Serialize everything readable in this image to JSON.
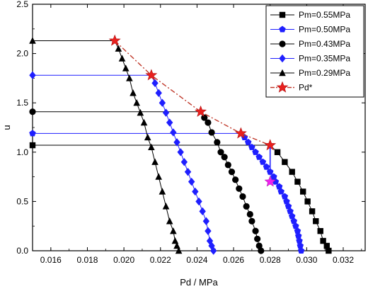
{
  "chart_data": {
    "type": "line",
    "title": "",
    "xlabel": "Pd / MPa",
    "ylabel": "u",
    "xlim": [
      0.015,
      0.0332
    ],
    "ylim": [
      0.0,
      2.5
    ],
    "xticks": [
      "0.016",
      "0.018",
      "0.020",
      "0.022",
      "0.024",
      "0.026",
      "0.028",
      "0.030",
      "0.032"
    ],
    "yticks": [
      "0.0",
      "0.5",
      "1.0",
      "1.5",
      "2.0",
      "2.5"
    ],
    "grid": false,
    "legend_position": "top-right",
    "series": [
      {
        "name": "Pm=0.55MPa",
        "marker": "square",
        "color": "#000000",
        "line_color": "#000000",
        "plateau": [
          [
            0.015,
            1.07
          ],
          [
            0.028,
            1.07
          ]
        ],
        "points": [
          [
            0.0284,
            1.0
          ],
          [
            0.0288,
            0.9
          ],
          [
            0.0292,
            0.8
          ],
          [
            0.0295,
            0.7
          ],
          [
            0.0298,
            0.6
          ],
          [
            0.03005,
            0.5
          ],
          [
            0.0303,
            0.4
          ],
          [
            0.0305,
            0.3
          ],
          [
            0.03075,
            0.2
          ],
          [
            0.0309,
            0.1
          ],
          [
            0.0311,
            0.05
          ],
          [
            0.0312,
            0.0
          ]
        ]
      },
      {
        "name": "Pm=0.50MPa",
        "marker": "pentagon",
        "color": "#1f1fff",
        "line_color": "#1f1fff",
        "plateau": [
          [
            0.015,
            1.19
          ],
          [
            0.0264,
            1.19
          ]
        ],
        "points": [
          [
            0.0266,
            1.15
          ],
          [
            0.0268,
            1.1
          ],
          [
            0.027,
            1.05
          ],
          [
            0.0272,
            1.0
          ],
          [
            0.0274,
            0.95
          ],
          [
            0.0276,
            0.9
          ],
          [
            0.0278,
            0.85
          ],
          [
            0.028,
            0.8
          ],
          [
            0.0282,
            0.75
          ],
          [
            0.0283,
            0.7
          ],
          [
            0.0285,
            0.65
          ],
          [
            0.0286,
            0.6
          ],
          [
            0.0288,
            0.55
          ],
          [
            0.0289,
            0.5
          ],
          [
            0.029,
            0.45
          ],
          [
            0.0291,
            0.4
          ],
          [
            0.0292,
            0.35
          ],
          [
            0.0293,
            0.3
          ],
          [
            0.0294,
            0.25
          ],
          [
            0.0295,
            0.2
          ],
          [
            0.02955,
            0.15
          ],
          [
            0.0296,
            0.1
          ],
          [
            0.02965,
            0.05
          ],
          [
            0.0297,
            0.0
          ]
        ]
      },
      {
        "name": "Pm=0.43MPa",
        "marker": "circle",
        "color": "#000000",
        "line_color": "#000000",
        "plateau": [
          [
            0.015,
            1.41
          ],
          [
            0.0242,
            1.41
          ]
        ],
        "points": [
          [
            0.0244,
            1.35
          ],
          [
            0.0246,
            1.3
          ],
          [
            0.0248,
            1.2
          ],
          [
            0.0251,
            1.1
          ],
          [
            0.0253,
            1.0
          ],
          [
            0.0255,
            0.95
          ],
          [
            0.0257,
            0.87
          ],
          [
            0.0259,
            0.8
          ],
          [
            0.0261,
            0.72
          ],
          [
            0.0263,
            0.63
          ],
          [
            0.0265,
            0.55
          ],
          [
            0.0267,
            0.45
          ],
          [
            0.0269,
            0.37
          ],
          [
            0.027,
            0.3
          ],
          [
            0.0272,
            0.2
          ],
          [
            0.0273,
            0.12
          ],
          [
            0.0274,
            0.05
          ],
          [
            0.0275,
            0.0
          ]
        ]
      },
      {
        "name": "Pm=0.35MPa",
        "marker": "diamond",
        "color": "#1f1fff",
        "line_color": "#1f1fff",
        "plateau": [
          [
            0.015,
            1.78
          ],
          [
            0.0215,
            1.78
          ]
        ],
        "points": [
          [
            0.0217,
            1.7
          ],
          [
            0.0219,
            1.6
          ],
          [
            0.0221,
            1.5
          ],
          [
            0.0223,
            1.4
          ],
          [
            0.0225,
            1.3
          ],
          [
            0.0227,
            1.2
          ],
          [
            0.0229,
            1.1
          ],
          [
            0.0231,
            1.0
          ],
          [
            0.0233,
            0.9
          ],
          [
            0.0235,
            0.8
          ],
          [
            0.0237,
            0.7
          ],
          [
            0.0239,
            0.6
          ],
          [
            0.0241,
            0.5
          ],
          [
            0.0243,
            0.4
          ],
          [
            0.0245,
            0.3
          ],
          [
            0.0246,
            0.2
          ],
          [
            0.0247,
            0.1
          ],
          [
            0.0248,
            0.05
          ],
          [
            0.0249,
            0.0
          ]
        ]
      },
      {
        "name": "Pm=0.29MPa",
        "marker": "triangle",
        "color": "#000000",
        "line_color": "#000000",
        "plateau": [
          [
            0.015,
            2.13
          ],
          [
            0.0195,
            2.13
          ]
        ],
        "points": [
          [
            0.0197,
            2.05
          ],
          [
            0.0199,
            1.95
          ],
          [
            0.0201,
            1.85
          ],
          [
            0.0203,
            1.75
          ],
          [
            0.0205,
            1.6
          ],
          [
            0.0207,
            1.5
          ],
          [
            0.0209,
            1.4
          ],
          [
            0.0211,
            1.3
          ],
          [
            0.0213,
            1.15
          ],
          [
            0.0215,
            1.05
          ],
          [
            0.0217,
            0.9
          ],
          [
            0.0219,
            0.75
          ],
          [
            0.0221,
            0.6
          ],
          [
            0.0223,
            0.45
          ],
          [
            0.0225,
            0.3
          ],
          [
            0.0227,
            0.2
          ],
          [
            0.0228,
            0.1
          ],
          [
            0.0229,
            0.05
          ],
          [
            0.023,
            0.0
          ]
        ]
      },
      {
        "name": "Pd*",
        "marker": "star",
        "color": "#e8201e",
        "line_color": "#c0392b",
        "line_style": "dash-dot",
        "points": [
          [
            0.0195,
            2.13
          ],
          [
            0.0215,
            1.78
          ],
          [
            0.0242,
            1.41
          ],
          [
            0.0264,
            1.19
          ],
          [
            0.028,
            1.07
          ]
        ]
      }
    ],
    "annotations": [
      {
        "type": "star",
        "color": "#ee22ee",
        "x": 0.028,
        "y": 0.7
      },
      {
        "type": "arrow",
        "color": "#1f1fff",
        "from": [
          0.028,
          1.05
        ],
        "to": [
          0.028,
          0.77
        ]
      }
    ]
  }
}
